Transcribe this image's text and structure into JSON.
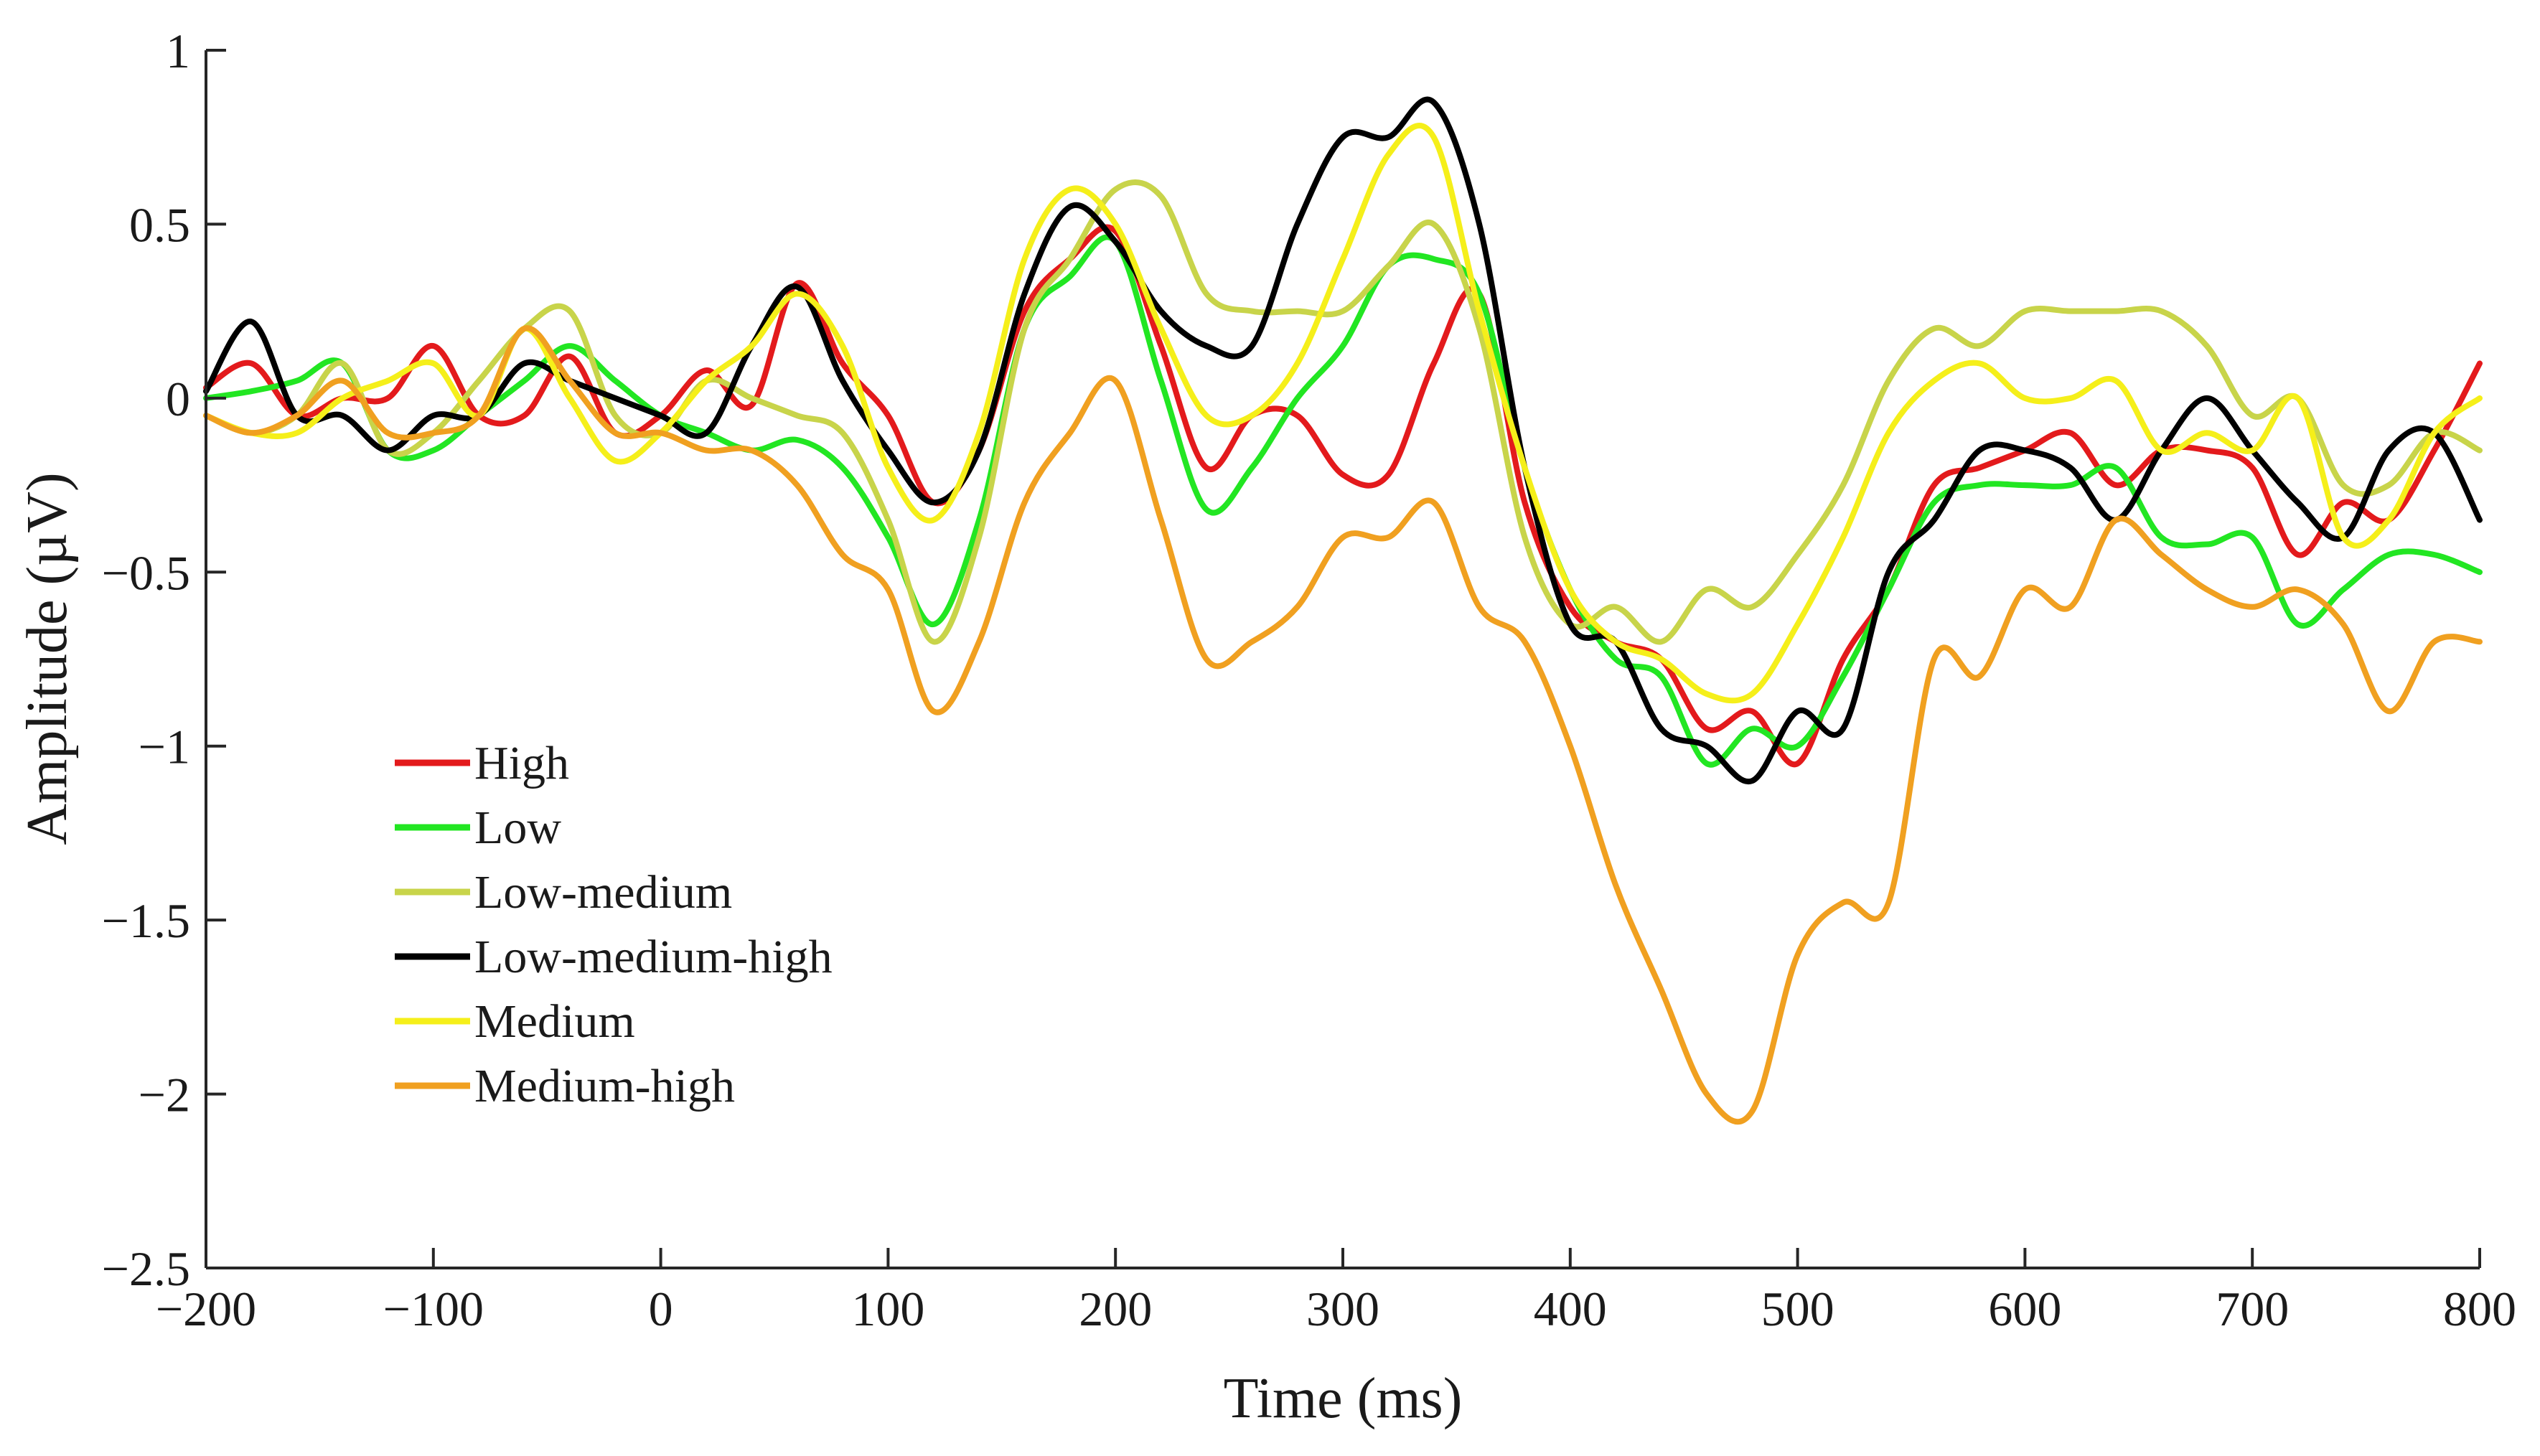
{
  "chart_data": {
    "type": "line",
    "title": "",
    "xlabel": "Time (ms)",
    "ylabel": "Amplitude (µV)",
    "xlim": [
      -200,
      800
    ],
    "ylim": [
      -2.5,
      1
    ],
    "xticks": [
      -200,
      -100,
      0,
      100,
      200,
      300,
      400,
      500,
      600,
      700,
      800
    ],
    "xtick_labels": [
      "−200",
      "−100",
      "0",
      "100",
      "200",
      "300",
      "400",
      "500",
      "600",
      "700",
      "800"
    ],
    "yticks": [
      1,
      0.5,
      0,
      -0.5,
      -1,
      -1.5,
      -2,
      -2.5
    ],
    "ytick_labels": [
      "1",
      "0.5",
      "0",
      "−0.5",
      "−1",
      "−1.5",
      "−2",
      "−2.5"
    ],
    "grid": false,
    "legend_position": "lower-left",
    "x": [
      -200,
      -180,
      -160,
      -140,
      -120,
      -100,
      -80,
      -60,
      -40,
      -20,
      0,
      20,
      40,
      60,
      80,
      100,
      120,
      140,
      160,
      180,
      200,
      220,
      240,
      260,
      280,
      300,
      320,
      340,
      360,
      380,
      400,
      420,
      440,
      460,
      480,
      500,
      520,
      540,
      560,
      580,
      600,
      620,
      640,
      660,
      680,
      700,
      720,
      740,
      760,
      780,
      800
    ],
    "series": [
      {
        "name": "High",
        "color": "#e31a1c",
        "values": [
          0.03,
          0.1,
          -0.05,
          0.0,
          0.0,
          0.15,
          -0.05,
          -0.05,
          0.12,
          -0.1,
          -0.05,
          0.08,
          -0.02,
          0.33,
          0.1,
          -0.05,
          -0.3,
          -0.15,
          0.25,
          0.4,
          0.48,
          0.15,
          -0.2,
          -0.05,
          -0.05,
          -0.22,
          -0.22,
          0.1,
          0.3,
          -0.3,
          -0.6,
          -0.7,
          -0.75,
          -0.95,
          -0.9,
          -1.05,
          -0.75,
          -0.55,
          -0.25,
          -0.2,
          -0.15,
          -0.1,
          -0.25,
          -0.15,
          -0.15,
          -0.2,
          -0.45,
          -0.3,
          -0.35,
          -0.15,
          0.1
        ]
      },
      {
        "name": "Low",
        "color": "#22e622",
        "values": [
          0.0,
          0.02,
          0.05,
          0.1,
          -0.15,
          -0.15,
          -0.05,
          0.05,
          0.15,
          0.05,
          -0.05,
          -0.1,
          -0.15,
          -0.12,
          -0.2,
          -0.4,
          -0.65,
          -0.35,
          0.2,
          0.35,
          0.45,
          0.05,
          -0.32,
          -0.2,
          0.0,
          0.15,
          0.38,
          0.4,
          0.3,
          -0.2,
          -0.55,
          -0.75,
          -0.8,
          -1.05,
          -0.95,
          -1.0,
          -0.8,
          -0.55,
          -0.3,
          -0.25,
          -0.25,
          -0.25,
          -0.2,
          -0.4,
          -0.42,
          -0.4,
          -0.65,
          -0.55,
          -0.45,
          -0.45,
          -0.5
        ]
      },
      {
        "name": "Low-medium",
        "color": "#c8d44a",
        "values": [
          -0.05,
          -0.1,
          -0.05,
          0.1,
          -0.15,
          -0.1,
          0.05,
          0.2,
          0.25,
          -0.05,
          -0.1,
          0.05,
          0.0,
          -0.05,
          -0.1,
          -0.35,
          -0.7,
          -0.4,
          0.2,
          0.4,
          0.6,
          0.58,
          0.3,
          0.25,
          0.25,
          0.25,
          0.38,
          0.5,
          0.2,
          -0.4,
          -0.65,
          -0.6,
          -0.7,
          -0.55,
          -0.6,
          -0.45,
          -0.25,
          0.05,
          0.2,
          0.15,
          0.25,
          0.25,
          0.25,
          0.25,
          0.15,
          -0.05,
          0.0,
          -0.25,
          -0.25,
          -0.1,
          -0.15
        ]
      },
      {
        "name": "Low-medium-high",
        "color": "#000000",
        "values": [
          0.02,
          0.22,
          -0.05,
          -0.05,
          -0.15,
          -0.05,
          -0.05,
          0.1,
          0.05,
          0.0,
          -0.05,
          -0.1,
          0.15,
          0.32,
          0.05,
          -0.15,
          -0.3,
          -0.15,
          0.3,
          0.55,
          0.45,
          0.25,
          0.15,
          0.15,
          0.5,
          0.75,
          0.75,
          0.85,
          0.5,
          -0.2,
          -0.65,
          -0.7,
          -0.95,
          -1.0,
          -1.1,
          -0.9,
          -0.95,
          -0.5,
          -0.35,
          -0.15,
          -0.15,
          -0.2,
          -0.35,
          -0.15,
          0.0,
          -0.15,
          -0.3,
          -0.4,
          -0.15,
          -0.1,
          -0.35
        ]
      },
      {
        "name": "Medium",
        "color": "#f5ef1a",
        "values": [
          -0.05,
          -0.1,
          -0.1,
          0.0,
          0.05,
          0.1,
          -0.05,
          0.2,
          0.0,
          -0.18,
          -0.1,
          0.05,
          0.15,
          0.3,
          0.15,
          -0.2,
          -0.35,
          -0.1,
          0.4,
          0.6,
          0.5,
          0.2,
          -0.05,
          -0.05,
          0.1,
          0.4,
          0.7,
          0.75,
          0.25,
          -0.2,
          -0.55,
          -0.7,
          -0.75,
          -0.85,
          -0.85,
          -0.65,
          -0.4,
          -0.1,
          0.05,
          0.1,
          0.0,
          0.0,
          0.05,
          -0.15,
          -0.1,
          -0.15,
          0.0,
          -0.4,
          -0.35,
          -0.1,
          0.0
        ]
      },
      {
        "name": "Medium-high",
        "color": "#f0a020",
        "values": [
          -0.05,
          -0.1,
          -0.05,
          0.05,
          -0.1,
          -0.1,
          -0.05,
          0.2,
          0.05,
          -0.1,
          -0.1,
          -0.15,
          -0.15,
          -0.25,
          -0.45,
          -0.55,
          -0.9,
          -0.7,
          -0.3,
          -0.1,
          0.05,
          -0.35,
          -0.75,
          -0.7,
          -0.6,
          -0.4,
          -0.4,
          -0.3,
          -0.6,
          -0.7,
          -1.0,
          -1.4,
          -1.7,
          -2.0,
          -2.05,
          -1.6,
          -1.45,
          -1.45,
          -0.75,
          -0.8,
          -0.55,
          -0.6,
          -0.35,
          -0.45,
          -0.55,
          -0.6,
          -0.55,
          -0.65,
          -0.9,
          -0.7,
          -0.7
        ]
      }
    ]
  }
}
